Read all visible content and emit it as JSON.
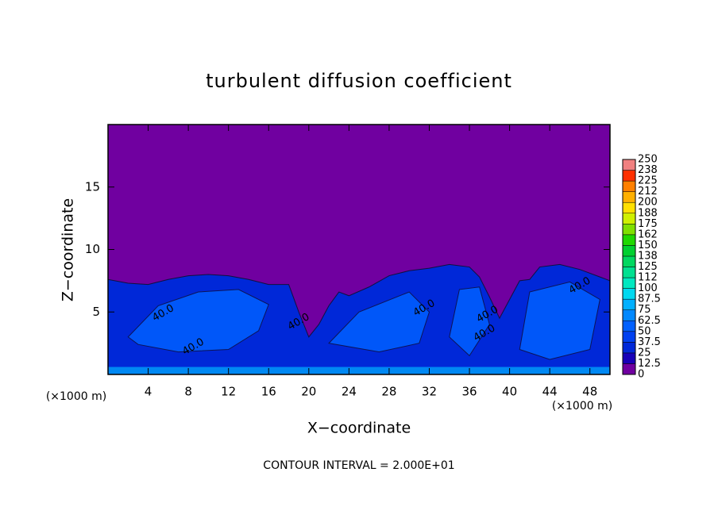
{
  "chart_data": {
    "type": "contour",
    "title": "turbulent diffusion coefficient",
    "x_label": "X−coordinate",
    "y_label": "Z−coordinate",
    "x_unit": "(×1000 m)",
    "x_unit_right": "(×1000 m)",
    "footer": "CONTOUR INTERVAL = 2.000E+01",
    "xlim": [
      0,
      50
    ],
    "xticks": [
      4,
      8,
      12,
      16,
      20,
      24,
      28,
      32,
      36,
      40,
      44,
      48
    ],
    "ylim": [
      0,
      20
    ],
    "yticks": [
      5,
      10,
      15
    ],
    "contour_labels": [
      "40.0",
      "40.0",
      "40.0",
      "40.0",
      "40.0",
      "40.0",
      "40.0"
    ],
    "colorbar": {
      "levels": [
        0,
        12.5,
        25,
        37.5,
        50,
        62.5,
        75,
        87.5,
        100,
        {
          "value": 112.5,
          "label": "112"
        },
        125,
        {
          "value": 137.5,
          "label": "138"
        },
        150,
        {
          "value": 162.5,
          "label": "162"
        },
        175,
        {
          "value": 187.5,
          "label": "188"
        },
        200,
        {
          "value": 212.5,
          "label": "212"
        },
        225,
        {
          "value": 237.5,
          "label": "238"
        },
        250
      ],
      "colors": [
        "#7000a0",
        "#1800b8",
        "#0028d8",
        "#0040f0",
        "#0060ff",
        "#0088ff",
        "#00b0ff",
        "#00d8f0",
        "#00e8c0",
        "#00e090",
        "#00d860",
        "#00d030",
        "#20d800",
        "#80e000",
        "#d0f000",
        "#ffe000",
        "#ffb000",
        "#ff8000",
        "#ff3000",
        "#f08080"
      ]
    }
  }
}
